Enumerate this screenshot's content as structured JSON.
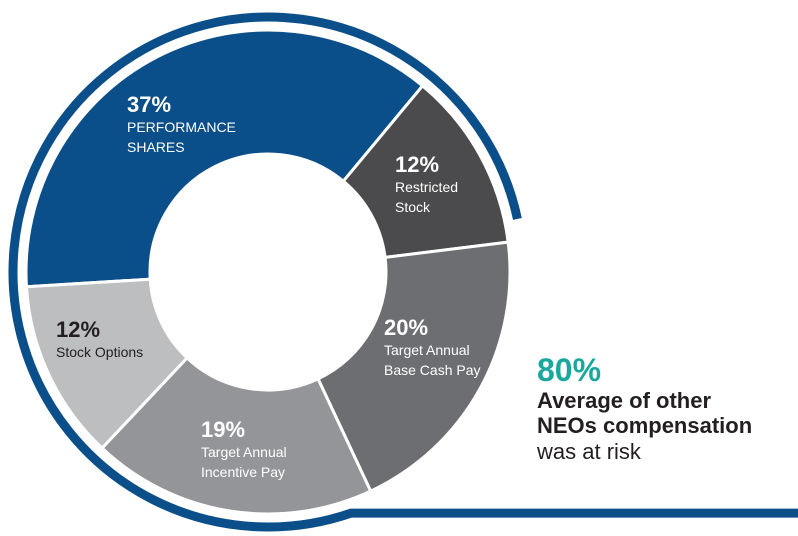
{
  "chart_data": {
    "type": "pie",
    "style": "donut",
    "slices": [
      {
        "label": "PERFORMANCE SHARES",
        "value": 37,
        "pct_text": "37%",
        "lines": [
          "PERFORMANCE",
          "SHARES"
        ],
        "color": "#0b4f8a",
        "text_color": "#ffffff",
        "pct_color": "#ffffff"
      },
      {
        "label": "Restricted Stock",
        "value": 12,
        "pct_text": "12%",
        "lines": [
          "Restricted",
          "Stock"
        ],
        "color": "#4b4b4d",
        "text_color": "#ffffff",
        "pct_color": "#ffffff"
      },
      {
        "label": "Target Annual Base Cash Pay",
        "value": 20,
        "pct_text": "20%",
        "lines": [
          "Target Annual",
          "Base Cash Pay"
        ],
        "color": "#6d6e71",
        "text_color": "#ffffff",
        "pct_color": "#ffffff"
      },
      {
        "label": "Target Annual Incentive Pay",
        "value": 19,
        "pct_text": "19%",
        "lines": [
          "Target Annual",
          "Incentive Pay"
        ],
        "color": "#939598",
        "text_color": "#ffffff",
        "pct_color": "#ffffff"
      },
      {
        "label": "Stock Options",
        "value": 12,
        "pct_text": "12%",
        "lines": [
          "Stock Options"
        ],
        "color": "#bcbec0",
        "text_color": "#231f20",
        "pct_color": "#231f20"
      }
    ],
    "at_risk_arc_color": "#0b4f8a"
  },
  "callout": {
    "value": "80%",
    "line1": "Average of other",
    "line2": "NEOs compensation",
    "line3": "was at risk"
  }
}
